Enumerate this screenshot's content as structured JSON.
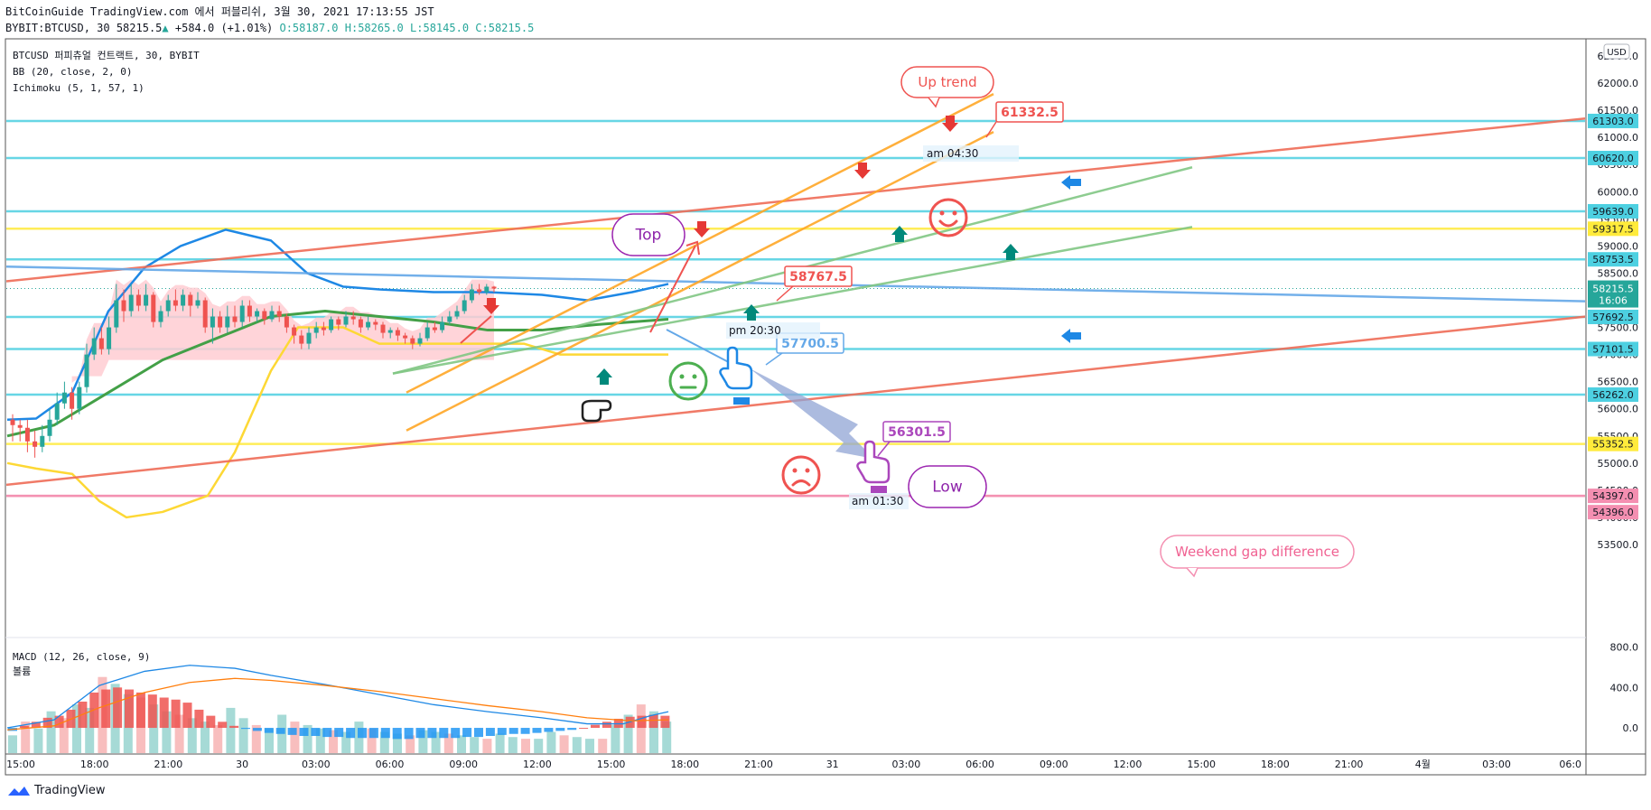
{
  "header": {
    "line1": "BitCoinGuide TradingView.com 에서 퍼블리쉬, 3월 30, 2021 17:13:55 JST",
    "symbol": "BYBIT:BTCUSD, 30",
    "price": "58215.5",
    "change": "+584.0 (+1.01%)",
    "open": "O:58187.0",
    "high": "H:58265.0",
    "low": "L:58145.0",
    "close": "C:58215.5"
  },
  "legend": {
    "title": "BTCUSD 퍼피츄얼 컨트랙트, 30, BYBIT",
    "bb": "BB (20, close, 2, 0)",
    "ichimoku": "Ichimoku (5, 1, 57, 1)",
    "macd": "MACD (12, 26, close, 9)",
    "volume": "볼륨"
  },
  "currency": "USD",
  "footer": {
    "brand": "TradingView"
  },
  "chart_data": {
    "type": "candlestick",
    "price_axis": {
      "range": [
        53000,
        62700
      ],
      "ticks": [
        "62500.0",
        "62000.0",
        "61500.0",
        "61000.0",
        "60500.0",
        "60000.0",
        "59500.0",
        "59000.0",
        "58500.0",
        "58000.0",
        "57500.0",
        "57000.0",
        "56500.0",
        "56000.0",
        "55500.0",
        "55000.0",
        "54500.0",
        "54000.0",
        "53500.0"
      ]
    },
    "time_axis": [
      "15:00",
      "18:00",
      "21:00",
      "30",
      "03:00",
      "06:00",
      "09:00",
      "12:00",
      "15:00",
      "18:00",
      "21:00",
      "31",
      "03:00",
      "06:00",
      "09:00",
      "12:00",
      "15:00",
      "18:00",
      "21:00",
      "4월",
      "03:00",
      "06:0"
    ],
    "macd_axis": {
      "range": [
        -250,
        850
      ],
      "ticks": [
        "800.0",
        "400.0",
        "0.0"
      ]
    },
    "current": {
      "price": "58215.5",
      "countdown": "16:06"
    },
    "levels": [
      {
        "price": 61303.0,
        "label": "61303.0",
        "color": "#4dd0e1"
      },
      {
        "price": 60620.0,
        "label": "60620.0",
        "color": "#4dd0e1"
      },
      {
        "price": 59639.0,
        "label": "59639.0",
        "color": "#4dd0e1"
      },
      {
        "price": 59317.5,
        "label": "59317.5",
        "color": "#ffeb3b"
      },
      {
        "price": 58753.5,
        "label": "58753.5",
        "color": "#4dd0e1"
      },
      {
        "price": 57692.5,
        "label": "57692.5",
        "color": "#4dd0e1"
      },
      {
        "price": 57101.5,
        "label": "57101.5",
        "color": "#4dd0e1"
      },
      {
        "price": 56262.0,
        "label": "56262.0",
        "color": "#4dd0e1"
      },
      {
        "price": 55352.5,
        "label": "55352.5",
        "color": "#ffeb3b"
      },
      {
        "price": 54397.0,
        "label": "54397.0",
        "color": "#f48fb1"
      },
      {
        "price": 54396.0,
        "label": "54396.0",
        "color": "#f48fb1"
      }
    ],
    "candles": [
      [
        55800,
        55700,
        55900,
        55400
      ],
      [
        55700,
        55650,
        55800,
        55400
      ],
      [
        55650,
        55400,
        55800,
        55200
      ],
      [
        55400,
        55300,
        55600,
        55100
      ],
      [
        55300,
        55500,
        55700,
        55200
      ],
      [
        55500,
        55800,
        56000,
        55400
      ],
      [
        55800,
        56100,
        56300,
        55700
      ],
      [
        56100,
        56300,
        56500,
        56000
      ],
      [
        56300,
        56000,
        56400,
        55800
      ],
      [
        56000,
        56400,
        56500,
        55900
      ],
      [
        56400,
        57000,
        57200,
        56300
      ],
      [
        57000,
        57300,
        57500,
        56900
      ],
      [
        57300,
        57100,
        57500,
        57000
      ],
      [
        57100,
        57500,
        57700,
        57000
      ],
      [
        57500,
        58000,
        58300,
        57400
      ],
      [
        58000,
        57800,
        58200,
        57600
      ],
      [
        57800,
        58100,
        58300,
        57700
      ],
      [
        58100,
        57900,
        58200,
        57800
      ],
      [
        57900,
        58100,
        58300,
        57800
      ],
      [
        58100,
        57600,
        58150,
        57500
      ],
      [
        57600,
        57800,
        57900,
        57500
      ],
      [
        57800,
        58000,
        58100,
        57700
      ],
      [
        58000,
        57900,
        58200,
        57800
      ],
      [
        57900,
        58100,
        58200,
        57800
      ],
      [
        58100,
        57900,
        58150,
        57700
      ],
      [
        57900,
        58000,
        58150,
        57850
      ],
      [
        58000,
        57500,
        58050,
        57400
      ],
      [
        57500,
        57700,
        57850,
        57200
      ],
      [
        57700,
        57500,
        57800,
        57400
      ],
      [
        57500,
        57700,
        57900,
        57400
      ],
      [
        57700,
        57600,
        57900,
        57500
      ],
      [
        57600,
        57900,
        58000,
        57500
      ],
      [
        57900,
        57700,
        58000,
        57600
      ],
      [
        57700,
        57800,
        57850,
        57600
      ],
      [
        57800,
        57650,
        57850,
        57550
      ],
      [
        57650,
        57800,
        57900,
        57600
      ],
      [
        57800,
        57700,
        57900,
        57600
      ],
      [
        57700,
        57500,
        57750,
        57400
      ],
      [
        57500,
        57350,
        57550,
        57200
      ],
      [
        57350,
        57200,
        57450,
        57100
      ],
      [
        57200,
        57400,
        57500,
        57100
      ],
      [
        57400,
        57500,
        57600,
        57300
      ],
      [
        57500,
        57450,
        57600,
        57350
      ],
      [
        57450,
        57650,
        57700,
        57400
      ],
      [
        57650,
        57550,
        57700,
        57450
      ],
      [
        57550,
        57700,
        57800,
        57500
      ],
      [
        57700,
        57650,
        57800,
        57550
      ],
      [
        57650,
        57500,
        57700,
        57400
      ],
      [
        57500,
        57600,
        57700,
        57450
      ],
      [
        57600,
        57550,
        57650,
        57450
      ],
      [
        57550,
        57400,
        57600,
        57300
      ],
      [
        57400,
        57450,
        57500,
        57300
      ],
      [
        57450,
        57350,
        57500,
        57250
      ],
      [
        57350,
        57300,
        57400,
        57200
      ],
      [
        57300,
        57200,
        57350,
        57100
      ],
      [
        57200,
        57300,
        57400,
        57150
      ],
      [
        57300,
        57500,
        57600,
        57250
      ],
      [
        57500,
        57450,
        57600,
        57400
      ],
      [
        57450,
        57600,
        57700,
        57400
      ],
      [
        57600,
        57700,
        57800,
        57550
      ],
      [
        57700,
        57800,
        57900,
        57650
      ],
      [
        57800,
        58000,
        58100,
        57750
      ],
      [
        58000,
        58200,
        58300,
        57950
      ],
      [
        58200,
        58150,
        58300,
        58100
      ],
      [
        58150,
        58250,
        58300,
        58100
      ],
      [
        58250,
        58215,
        58265,
        58145
      ]
    ],
    "macd_hist": [
      -30,
      20,
      60,
      100,
      120,
      180,
      260,
      350,
      380,
      400,
      380,
      350,
      330,
      300,
      280,
      250,
      180,
      120,
      60,
      20,
      -10,
      -30,
      -50,
      -60,
      -70,
      -80,
      -80,
      -90,
      -90,
      -100,
      -100,
      -100,
      -100,
      -110,
      -110,
      -100,
      -100,
      -100,
      -100,
      -90,
      -90,
      -80,
      -70,
      -60,
      -60,
      -50,
      -40,
      -30,
      -20,
      0,
      30,
      60,
      90,
      110,
      120,
      130,
      120
    ],
    "volume": [
      80,
      160,
      120,
      220,
      180,
      260,
      240,
      420,
      380,
      320,
      300,
      260,
      220,
      200,
      180,
      160,
      140,
      240,
      180,
      140,
      120,
      200,
      160,
      140,
      120,
      110,
      100,
      160,
      120,
      100,
      90,
      80,
      110,
      100,
      90,
      80,
      70,
      60,
      90,
      70,
      60,
      60,
      100,
      80,
      70,
      60,
      60,
      140,
      200,
      260,
      220,
      160
    ],
    "annotations": {
      "up_trend": "Up trend",
      "top": "Top",
      "low": "Low",
      "weekend": "Weekend gap difference",
      "p61332": "61332.5",
      "p58767": "58767.5",
      "p57700": "57700.5",
      "p56301": "56301.5",
      "t_am0430": "am 04:30",
      "t_pm2030": "pm 20:30",
      "t_am0130": "am 01:30"
    }
  }
}
